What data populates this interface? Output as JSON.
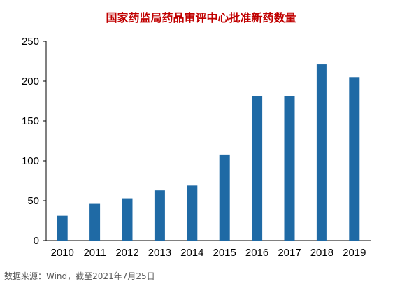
{
  "chart_data": {
    "type": "bar",
    "title": "国家药监局药品审评中心批准新药数量",
    "categories": [
      "2010",
      "2011",
      "2012",
      "2013",
      "2014",
      "2015",
      "2016",
      "2017",
      "2018",
      "2019"
    ],
    "values": [
      31,
      46,
      53,
      63,
      69,
      108,
      181,
      181,
      221,
      205
    ],
    "ylim": [
      0,
      250
    ],
    "yticks": [
      0,
      50,
      100,
      150,
      200,
      250
    ],
    "ytick_labels": [
      "0",
      "50",
      "100",
      "150",
      "200",
      "250"
    ],
    "bar_color": "#1f6aa5",
    "grid": false,
    "xlabel": "",
    "ylabel": ""
  },
  "source_note": "数据来源：Wind，截至2021年7月25日"
}
